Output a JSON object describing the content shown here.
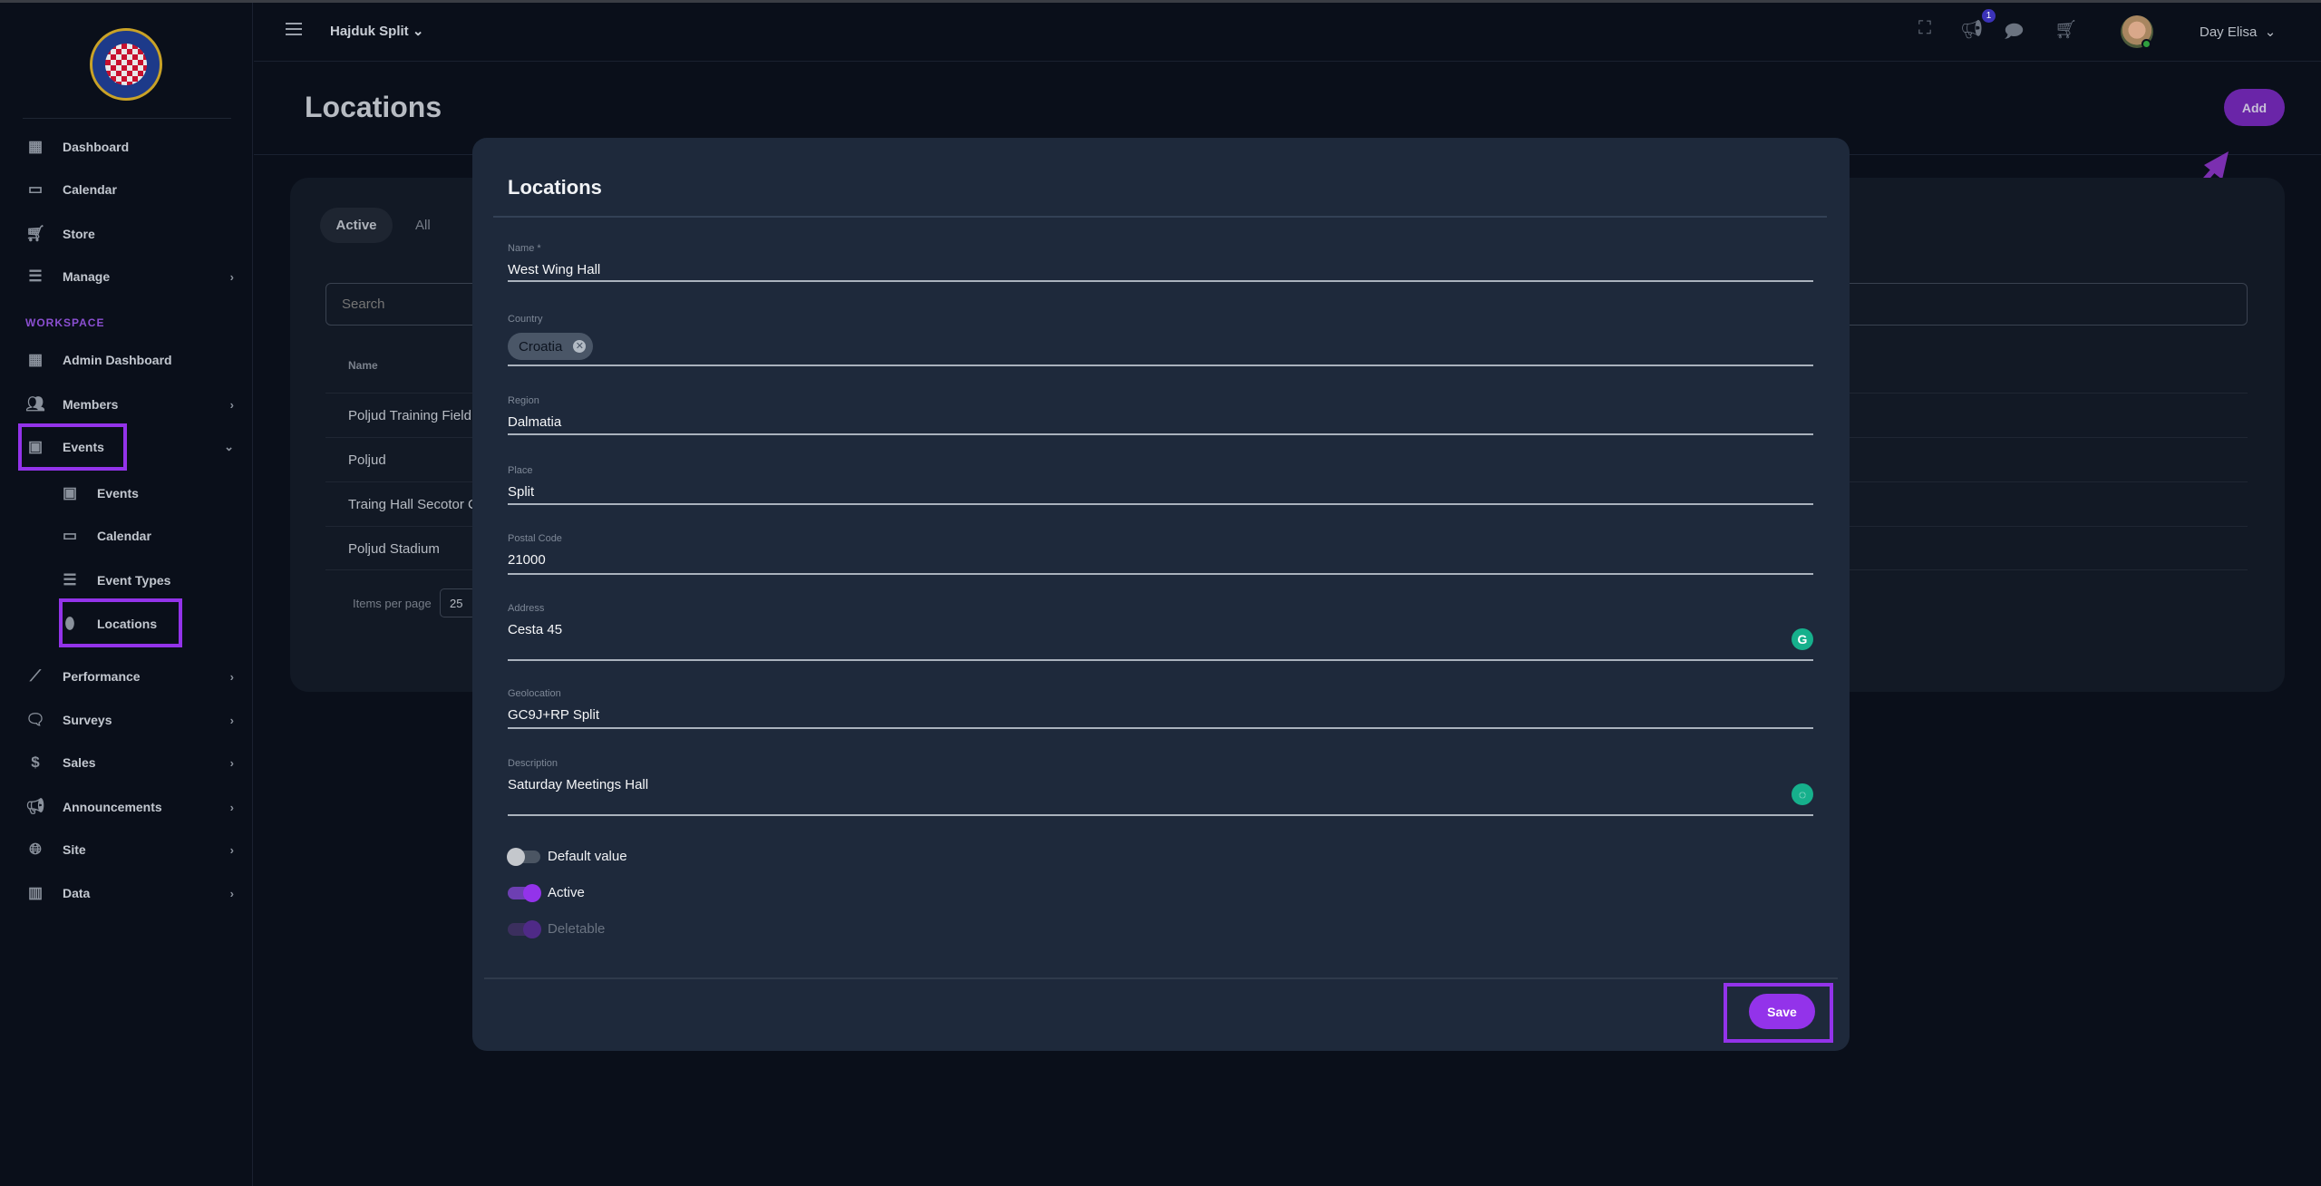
{
  "header": {
    "org": "Hajduk Split",
    "notification_count": "1",
    "user_name": "Day Elisa"
  },
  "logo": {
    "text": "HAJDUK SPLIT"
  },
  "sidebar": {
    "items": [
      {
        "label": "Dashboard",
        "icon": "dashboard-icon"
      },
      {
        "label": "Calendar",
        "icon": "calendar-icon"
      },
      {
        "label": "Store",
        "icon": "cart-icon"
      },
      {
        "label": "Manage",
        "icon": "list-icon"
      }
    ],
    "section": "WORKSPACE",
    "workspace": [
      {
        "label": "Admin Dashboard"
      },
      {
        "label": "Members"
      },
      {
        "label": "Events"
      }
    ],
    "events_sub": [
      {
        "label": "Events"
      },
      {
        "label": "Calendar"
      },
      {
        "label": "Event Types"
      },
      {
        "label": "Locations"
      }
    ],
    "more": [
      {
        "label": "Performance"
      },
      {
        "label": "Surveys"
      },
      {
        "label": "Sales"
      },
      {
        "label": "Announcements"
      },
      {
        "label": "Site"
      },
      {
        "label": "Data"
      }
    ]
  },
  "page": {
    "title": "Locations",
    "add_label": "Add",
    "tabs": [
      "Active",
      "All"
    ],
    "search_placeholder": "Search",
    "column_name": "Name",
    "rows": [
      "Poljud Training Field",
      "Poljud",
      "Traing Hall Secotor C",
      "Poljud Stadium"
    ],
    "items_per_page_label": "Items per page",
    "items_per_page": "25"
  },
  "modal": {
    "title": "Locations",
    "fields": {
      "name_label": "Name *",
      "name": "West Wing Hall",
      "country_label": "Country",
      "country": "Croatia",
      "region_label": "Region",
      "region": "Dalmatia",
      "place_label": "Place",
      "place": "Split",
      "postal_label": "Postal Code",
      "postal": "21000",
      "address_label": "Address",
      "address": "Cesta 45",
      "geo_label": "Geolocation",
      "geo": "GC9J+RP Split",
      "desc_label": "Description",
      "desc": "Saturday Meetings Hall"
    },
    "toggles": [
      {
        "label": "Default value",
        "on": false
      },
      {
        "label": "Active",
        "on": true
      },
      {
        "label": "Deletable",
        "on": true,
        "disabled": true
      }
    ],
    "save_label": "Save"
  },
  "colors": {
    "accent": "#9333ea",
    "modal_bg": "#1e293b",
    "page_bg": "#0a0f1a",
    "grammarly": "#16b08c"
  }
}
